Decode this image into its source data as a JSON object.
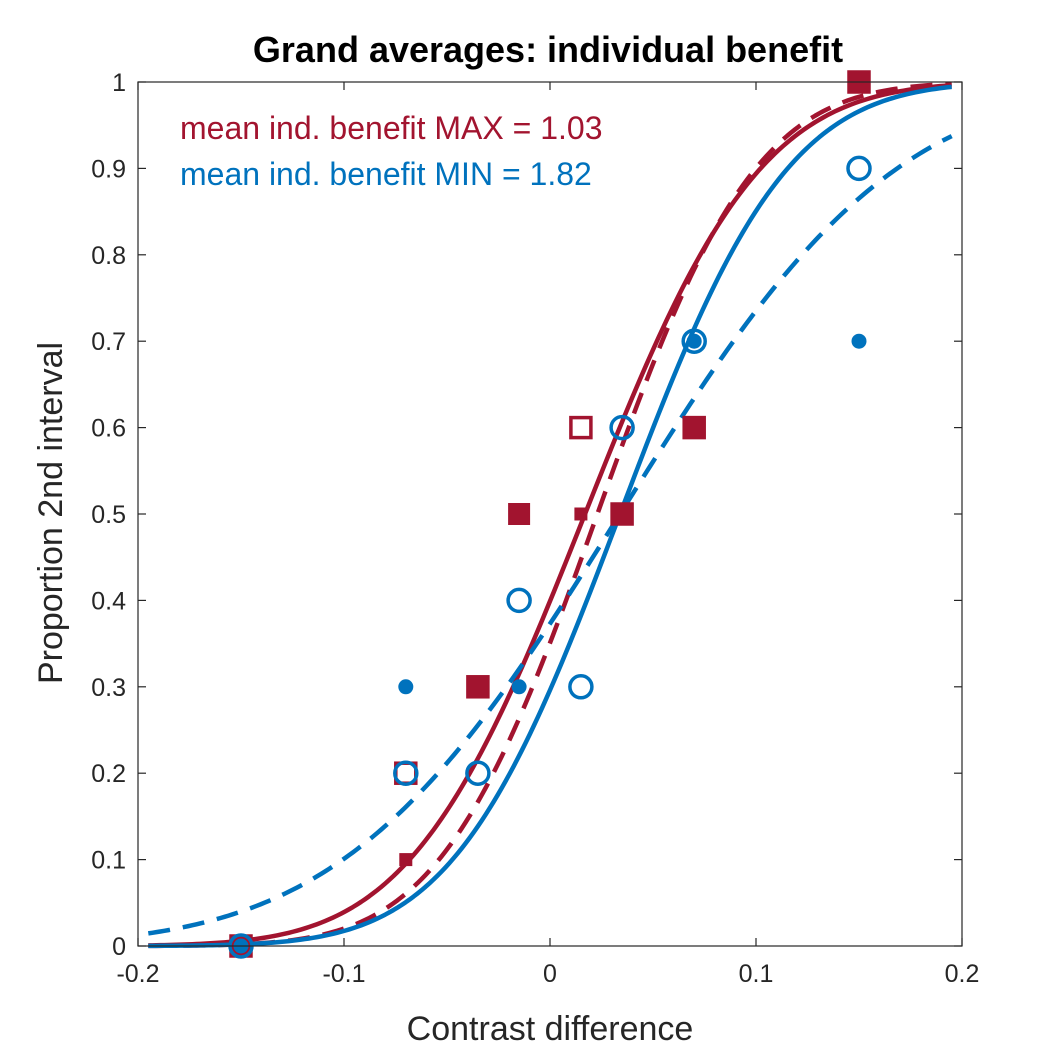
{
  "chart_data": {
    "type": "scatter",
    "title": "Grand averages: individual benefit",
    "xlabel": "Contrast difference",
    "ylabel": "Proportion 2nd interval",
    "xlim": [
      -0.2,
      0.2
    ],
    "ylim": [
      0,
      1
    ],
    "xticks": [
      -0.2,
      -0.1,
      0,
      0.1,
      0.2
    ],
    "xtick_labels": [
      "-0.2",
      "-0.1",
      "0",
      "0.1",
      "0.2"
    ],
    "yticks": [
      0,
      0.1,
      0.2,
      0.3,
      0.4,
      0.5,
      0.6,
      0.7,
      0.8,
      0.9,
      1
    ],
    "ytick_labels": [
      "0",
      "0.1",
      "0.2",
      "0.3",
      "0.4",
      "0.5",
      "0.6",
      "0.7",
      "0.8",
      "0.9",
      "1"
    ],
    "grid": false,
    "box": true,
    "colors": {
      "max": "#a2142f",
      "min": "#0072bd"
    },
    "annotations": [
      {
        "text": "mean ind. benefit MAX = 1.03",
        "color": "#a2142f"
      },
      {
        "text": "mean ind. benefit MIN = 1.82",
        "color": "#0072bd"
      }
    ],
    "scatter_series": [
      {
        "group": "max",
        "marker": "open-square",
        "x": [
          -0.15,
          -0.07,
          -0.035,
          0.015,
          0.035,
          0.07,
          0.15
        ],
        "y": [
          0,
          0.2,
          0.3,
          0.6,
          0.5,
          0.6,
          1.0
        ]
      },
      {
        "group": "max",
        "marker": "filled-square-large",
        "x": [
          -0.15,
          -0.035,
          -0.015,
          0.035,
          0.07,
          0.15
        ],
        "y": [
          0,
          0.3,
          0.5,
          0.5,
          0.6,
          1.0
        ]
      },
      {
        "group": "max",
        "marker": "filled-square-small",
        "x": [
          -0.07,
          0.015
        ],
        "y": [
          0.1,
          0.5
        ]
      },
      {
        "group": "min",
        "marker": "open-circle",
        "x": [
          -0.15,
          -0.07,
          -0.035,
          -0.015,
          0.015,
          0.035,
          0.07,
          0.15
        ],
        "y": [
          0,
          0.2,
          0.2,
          0.4,
          0.3,
          0.6,
          0.7,
          0.9
        ]
      },
      {
        "group": "min",
        "marker": "filled-circle",
        "x": [
          -0.15,
          -0.07,
          -0.015,
          0.07,
          0.15
        ],
        "y": [
          0,
          0.3,
          0.3,
          0.7,
          0.7
        ]
      }
    ],
    "fit_curves": [
      {
        "group": "max",
        "style": "solid",
        "mu": 0.017,
        "sigma": 0.0665,
        "x_range": [
          -0.195,
          0.195
        ]
      },
      {
        "group": "max",
        "style": "dashed",
        "mu": 0.023,
        "sigma": 0.06,
        "x_range": [
          -0.195,
          0.195
        ]
      },
      {
        "group": "min",
        "style": "solid",
        "mu": 0.034,
        "sigma": 0.0635,
        "x_range": [
          -0.195,
          0.195
        ]
      },
      {
        "group": "min",
        "style": "dashed",
        "mu": 0.034,
        "sigma": 0.105,
        "x_range": [
          -0.195,
          0.195
        ]
      }
    ]
  }
}
